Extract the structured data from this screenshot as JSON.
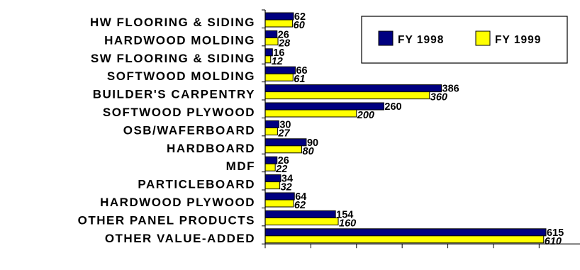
{
  "chart_data": {
    "type": "bar",
    "orientation": "horizontal",
    "title": "",
    "xlabel": "",
    "ylabel": "",
    "categories": [
      "HW FLOORING & SIDING",
      "HARDWOOD MOLDING",
      "SW FLOORING & SIDING",
      "SOFTWOOD MOLDING",
      "BUILDER'S CARPENTRY",
      "SOFTWOOD PLYWOOD",
      "OSB/WAFERBOARD",
      "HARDBOARD",
      "MDF",
      "PARTICLEBOARD",
      "HARDWOOD PLYWOOD",
      "OTHER PANEL PRODUCTS",
      "OTHER VALUE-ADDED"
    ],
    "series": [
      {
        "name": "FY 1998",
        "color": "#000080",
        "values": [
          62,
          26,
          16,
          66,
          386,
          260,
          30,
          90,
          26,
          34,
          64,
          154,
          615
        ]
      },
      {
        "name": "FY 1999",
        "color": "#ffff00",
        "values": [
          60,
          28,
          12,
          61,
          360,
          200,
          27,
          80,
          22,
          32,
          62,
          160,
          610
        ]
      }
    ],
    "xlim": [
      0,
      700
    ],
    "xtick_step": 100,
    "grid": false,
    "legend_position": "top-right"
  }
}
